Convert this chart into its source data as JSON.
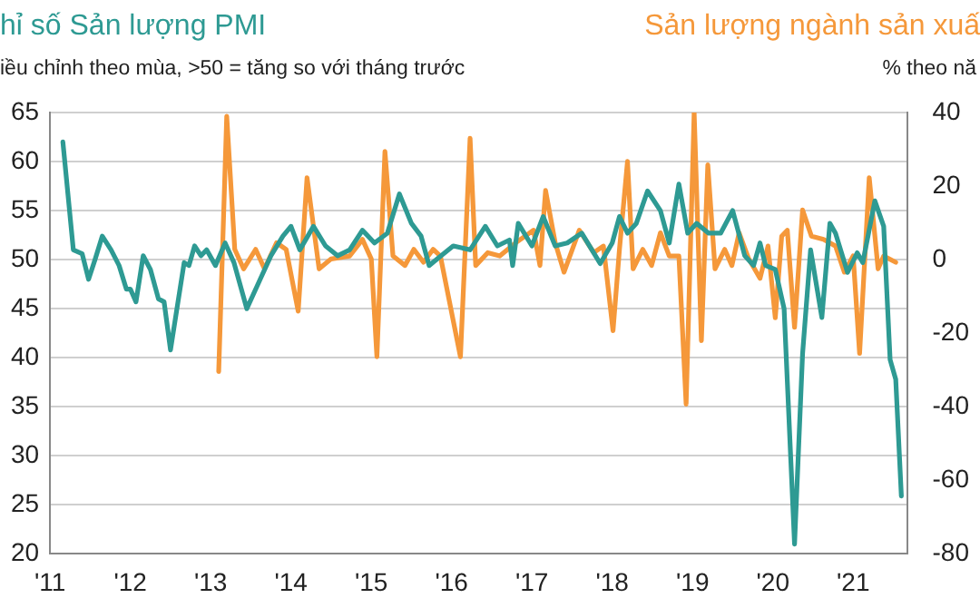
{
  "chart_data": {
    "type": "line",
    "ylabel": "hỉ số Sản lượng PMI",
    "y2label": "Sản lượng ngành sản xuấ",
    "annotations": [
      "iều chỉnh theo mùa, >50 = tăng so với tháng trước",
      "% theo nă"
    ],
    "xlim": [
      2011,
      2021.67
    ],
    "xticks": [
      {
        "value": 2011,
        "label": "'11"
      },
      {
        "value": 2012,
        "label": "'12"
      },
      {
        "value": 2013,
        "label": "'13"
      },
      {
        "value": 2014,
        "label": "'14"
      },
      {
        "value": 2015,
        "label": "'15"
      },
      {
        "value": 2016,
        "label": "'16"
      },
      {
        "value": 2017,
        "label": "'17"
      },
      {
        "value": 2018,
        "label": "'18"
      },
      {
        "value": 2019,
        "label": "'19"
      },
      {
        "value": 2020,
        "label": "'20"
      },
      {
        "value": 2021,
        "label": "'21"
      }
    ],
    "ylim": [
      20,
      65
    ],
    "yticks": [
      20,
      25,
      30,
      35,
      40,
      45,
      50,
      55,
      60,
      65
    ],
    "y2lim": [
      -80,
      40
    ],
    "y2ticks": [
      -80,
      -60,
      -40,
      -20,
      0,
      20,
      40
    ],
    "grid": "y",
    "series": [
      {
        "color": "#2e9a93",
        "axis": "y",
        "x": [
          2011.16,
          2011.29,
          2011.4,
          2011.48,
          2011.56,
          2011.65,
          2011.76,
          2011.86,
          2011.95,
          2012.0,
          2012.07,
          2012.16,
          2012.25,
          2012.35,
          2012.42,
          2012.5,
          2012.58,
          2012.67,
          2012.73,
          2012.8,
          2012.88,
          2012.95,
          2013.06,
          2013.18,
          2013.29,
          2013.45,
          2013.6,
          2013.75,
          2013.9,
          2014.0,
          2014.11,
          2014.28,
          2014.43,
          2014.58,
          2014.73,
          2014.89,
          2015.04,
          2015.2,
          2015.35,
          2015.5,
          2015.62,
          2015.72,
          2015.87,
          2016.02,
          2016.23,
          2016.42,
          2016.57,
          2016.72,
          2016.76,
          2016.83,
          2017.0,
          2017.14,
          2017.29,
          2017.44,
          2017.62,
          2017.85,
          2018.0,
          2018.09,
          2018.19,
          2018.3,
          2018.44,
          2018.6,
          2018.71,
          2018.83,
          2018.94,
          2019.05,
          2019.2,
          2019.35,
          2019.5,
          2019.65,
          2019.76,
          2019.84,
          2019.91,
          2020.03,
          2020.14,
          2020.27,
          2020.37,
          2020.47,
          2020.61,
          2020.71,
          2020.78,
          2020.93,
          2021.05,
          2021.12,
          2021.27,
          2021.38,
          2021.46,
          2021.53,
          2021.6
        ],
        "values": [
          62,
          51,
          50.6,
          48,
          50,
          52.4,
          51,
          49.4,
          47,
          47,
          45.7,
          50.4,
          49,
          46,
          45.7,
          40.8,
          45,
          49.7,
          49.4,
          51.4,
          50.4,
          51,
          49.4,
          51.7,
          49.7,
          45,
          47.7,
          50.4,
          52.4,
          53.4,
          51,
          53.4,
          51.4,
          50.4,
          51,
          53,
          51.7,
          52.7,
          56.7,
          53.7,
          52.4,
          49.4,
          50.4,
          51.4,
          51,
          53.4,
          51.4,
          52,
          49.4,
          53.7,
          51.4,
          54.4,
          51.4,
          51.7,
          52.7,
          49.6,
          51.7,
          54.4,
          52.7,
          53.7,
          57,
          55,
          51.7,
          57.7,
          52.7,
          53.7,
          52.7,
          52.7,
          55,
          50.4,
          49.4,
          51.7,
          49.4,
          49,
          45,
          21,
          40.4,
          51,
          44.1,
          53.7,
          52.7,
          48.7,
          50.7,
          49.7,
          56,
          53.4,
          39.8,
          37.8,
          25.9
        ]
      },
      {
        "color": "#f5983a",
        "axis": "y2",
        "x": [
          2013.1,
          2013.2,
          2013.3,
          2013.41,
          2013.56,
          2013.67,
          2013.82,
          2013.94,
          2014.09,
          2014.2,
          2014.35,
          2014.5,
          2014.73,
          2014.89,
          2015.0,
          2015.07,
          2015.17,
          2015.27,
          2015.42,
          2015.53,
          2015.65,
          2015.77,
          2015.86,
          2016.11,
          2016.23,
          2016.3,
          2016.45,
          2016.6,
          2016.8,
          2017.02,
          2017.1,
          2017.17,
          2017.29,
          2017.4,
          2017.59,
          2017.77,
          2017.89,
          2018.01,
          2018.09,
          2018.19,
          2018.26,
          2018.38,
          2018.49,
          2018.6,
          2018.71,
          2018.83,
          2018.92,
          2019.02,
          2019.11,
          2019.19,
          2019.28,
          2019.4,
          2019.49,
          2019.58,
          2019.7,
          2019.84,
          2019.94,
          2020.03,
          2020.11,
          2020.18,
          2020.27,
          2020.37,
          2020.48,
          2020.63,
          2020.78,
          2020.89,
          2021.0,
          2021.08,
          2021.2,
          2021.31,
          2021.38,
          2021.53
        ],
        "values": [
          -30.4,
          39,
          2.8,
          -2.5,
          2.8,
          -2.5,
          4.6,
          2.8,
          -14,
          22.3,
          -2.5,
          0.2,
          1,
          5.5,
          0.2,
          -26.4,
          29.4,
          1,
          -1.6,
          2.8,
          -0.7,
          2.8,
          1,
          -26.4,
          33,
          -1.6,
          1.9,
          1,
          4.6,
          8,
          -1.6,
          18.8,
          4.6,
          -3.4,
          8,
          1.9,
          3.7,
          -19.3,
          2.8,
          26.7,
          -2.5,
          2.8,
          -1.6,
          7.3,
          1,
          1,
          -39.3,
          40,
          -22,
          25.8,
          -2.5,
          2.8,
          -1.6,
          7.3,
          0.2,
          -5.1,
          3.7,
          -15.8,
          6.4,
          8,
          -18.4,
          13.5,
          6.4,
          5.5,
          3.7,
          -3.4,
          1,
          -25.5,
          22.3,
          -2.5,
          1,
          -0.7
        ]
      }
    ]
  }
}
